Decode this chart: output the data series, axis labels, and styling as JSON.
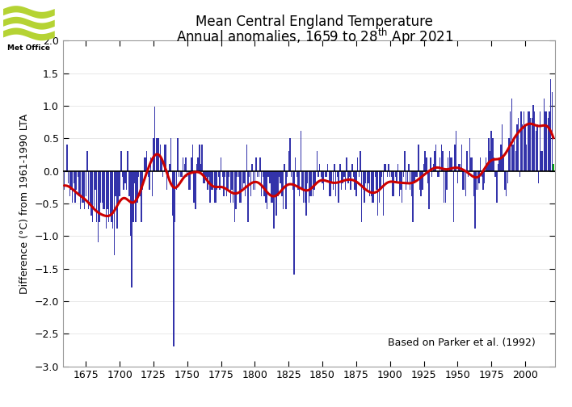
{
  "title_line1": "Mean Central England Temperature",
  "title_line2": "Annual anomalies, 1659 to 28",
  "title_superscript": "th",
  "title_line2_end": " Apr 2021",
  "ylabel": "Difference (°C) from 1961-1990 LTA",
  "annotation": "Based on Parker et al. (1992)",
  "ylim": [
    -3.0,
    2.0
  ],
  "yticks": [
    -3.0,
    -2.5,
    -2.0,
    -1.5,
    -1.0,
    -0.5,
    0.0,
    0.5,
    1.0,
    1.5,
    2.0
  ],
  "xticks": [
    1675,
    1700,
    1725,
    1750,
    1775,
    1800,
    1825,
    1850,
    1875,
    1900,
    1925,
    1950,
    1975,
    2000
  ],
  "bar_color": "#3333aa",
  "bar_color_last": "#00aa00",
  "smooth_color": "#cc0000",
  "smooth_linewidth": 2.2,
  "zero_line_color": "#000000",
  "background_color": "#ffffff",
  "title_fontsize": 12,
  "axis_fontsize": 9,
  "tick_fontsize": 9,
  "met_office_logo_color": "#b5d334",
  "annotation_fontsize": 9,
  "xlim_left": 1658,
  "xlim_right": 2022
}
